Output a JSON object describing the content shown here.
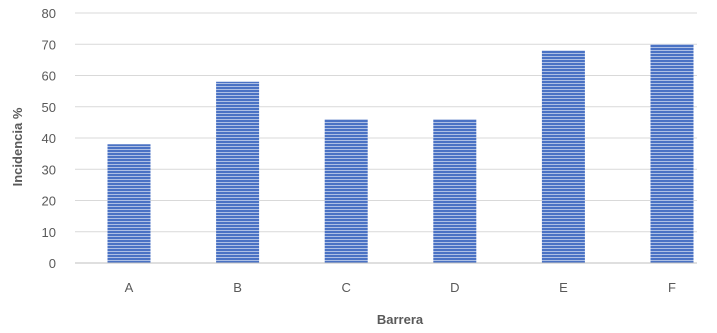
{
  "chart_data": {
    "type": "bar",
    "categories": [
      "A",
      "B",
      "C",
      "D",
      "E",
      "F"
    ],
    "values": [
      38,
      58,
      46,
      46,
      68,
      70
    ],
    "xlabel": "Barrera",
    "ylabel": "Incidencia %",
    "ylim": [
      0,
      80
    ],
    "yticks": [
      0,
      10,
      20,
      30,
      40,
      50,
      60,
      70,
      80
    ],
    "grid": true,
    "legend": "none",
    "colors": {
      "bar_fill": "#4a72c4",
      "bar_stripe": "#ffffff",
      "grid": "#d9d9d9",
      "axis": "#bfbfbf",
      "text": "#595959"
    }
  }
}
